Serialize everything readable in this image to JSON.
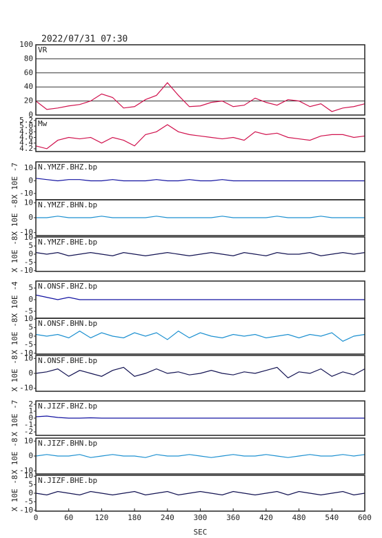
{
  "chart_data": [
    {
      "type": "line",
      "title": "2022/07/31 07:30",
      "label": "VR",
      "ylim": [
        0,
        100
      ],
      "yticks": [
        0,
        20,
        40,
        60,
        80,
        100
      ],
      "grid": true,
      "x": [
        0,
        20,
        40,
        60,
        80,
        100,
        120,
        140,
        160,
        180,
        200,
        220,
        240,
        260,
        280,
        300,
        320,
        340,
        360,
        380,
        400,
        420,
        440,
        460,
        480,
        500,
        520,
        540,
        560,
        580,
        600
      ],
      "series": [
        {
          "color": "#d0104c",
          "values": [
            20,
            8,
            10,
            13,
            15,
            20,
            30,
            25,
            10,
            12,
            22,
            28,
            46,
            28,
            12,
            13,
            18,
            20,
            12,
            14,
            24,
            18,
            14,
            22,
            20,
            12,
            16,
            5,
            10,
            12,
            16
          ]
        }
      ]
    },
    {
      "type": "line",
      "label": "Mw",
      "ylim": [
        4.1,
        5.27
      ],
      "yticks": [
        4.2,
        4.4,
        4.6,
        4.8,
        {
          "value": 5,
          "label": "5.0"
        },
        5.2
      ],
      "x": [
        0,
        20,
        40,
        60,
        80,
        100,
        120,
        140,
        160,
        180,
        200,
        220,
        240,
        260,
        280,
        300,
        320,
        340,
        360,
        380,
        400,
        420,
        440,
        460,
        480,
        500,
        520,
        540,
        560,
        580,
        600
      ],
      "series": [
        {
          "color": "#d0104c",
          "values": [
            4.3,
            4.2,
            4.5,
            4.6,
            4.55,
            4.6,
            4.4,
            4.6,
            4.5,
            4.3,
            4.7,
            4.8,
            5.05,
            4.8,
            4.7,
            4.65,
            4.6,
            4.55,
            4.6,
            4.5,
            4.8,
            4.7,
            4.75,
            4.6,
            4.55,
            4.5,
            4.65,
            4.7,
            4.7,
            4.6,
            4.65
          ]
        }
      ]
    },
    {
      "type": "line",
      "label": "N.YMZF.BHZ.bp",
      "ylabel": "X 10E -7",
      "ylim": [
        -15,
        15
      ],
      "yticks": [
        -10,
        0,
        10
      ],
      "x": [
        0,
        20,
        40,
        60,
        80,
        100,
        120,
        140,
        160,
        180,
        200,
        220,
        240,
        260,
        280,
        300,
        320,
        340,
        360,
        380,
        400,
        420,
        440,
        460,
        480,
        500,
        520,
        540,
        560,
        580,
        600
      ],
      "series": [
        {
          "color": "#1010a0",
          "values": [
            2,
            1,
            0,
            1,
            1,
            0,
            0,
            1,
            0,
            0,
            0,
            1,
            0,
            0,
            1,
            0,
            0,
            1,
            0,
            0,
            0,
            0,
            0,
            0,
            0,
            0,
            0,
            0,
            0,
            0,
            0
          ]
        }
      ]
    },
    {
      "type": "line",
      "label": "N.YMZF.BHN.bp",
      "ylabel": "X 10E -8",
      "ylim": [
        -12,
        12
      ],
      "yticks": [
        -10,
        0,
        10
      ],
      "x": [
        0,
        20,
        40,
        60,
        80,
        100,
        120,
        140,
        160,
        180,
        200,
        220,
        240,
        260,
        280,
        300,
        320,
        340,
        360,
        380,
        400,
        420,
        440,
        460,
        480,
        500,
        520,
        540,
        560,
        580,
        600
      ],
      "series": [
        {
          "color": "#1a8fd0",
          "values": [
            0,
            0,
            1,
            0,
            0,
            0,
            1,
            0,
            0,
            0,
            0,
            1,
            0,
            0,
            0,
            0,
            0,
            1,
            0,
            0,
            0,
            0,
            1,
            0,
            0,
            0,
            1,
            0,
            0,
            0,
            0
          ]
        }
      ]
    },
    {
      "type": "line",
      "label": "N.YMZF.BHE.bp",
      "ylabel": "X 10E -8",
      "ylim": [
        -10.5,
        10.5
      ],
      "yticks": [
        -10,
        -5,
        0,
        5,
        10
      ],
      "x": [
        0,
        20,
        40,
        60,
        80,
        100,
        120,
        140,
        160,
        180,
        200,
        220,
        240,
        260,
        280,
        300,
        320,
        340,
        360,
        380,
        400,
        420,
        440,
        460,
        480,
        500,
        520,
        540,
        560,
        580,
        600
      ],
      "series": [
        {
          "color": "#101050",
          "values": [
            1,
            0,
            1,
            -1,
            0,
            1,
            0,
            -1,
            1,
            0,
            -1,
            0,
            1,
            0,
            -1,
            0,
            1,
            0,
            -1,
            1,
            0,
            -1,
            1,
            0,
            0,
            1,
            -1,
            0,
            1,
            0,
            1
          ]
        }
      ]
    },
    {
      "type": "line",
      "label": "N.ONSF.BHZ.bp",
      "ylabel": "X 10E -4",
      "ylim": [
        -8,
        8
      ],
      "yticks": [
        -5,
        0,
        5
      ],
      "x": [
        0,
        20,
        40,
        60,
        80,
        100,
        120,
        140,
        160,
        180,
        200,
        220,
        240,
        260,
        280,
        300,
        320,
        340,
        360,
        380,
        400,
        420,
        440,
        460,
        480,
        500,
        520,
        540,
        560,
        580,
        600
      ],
      "series": [
        {
          "color": "#1010a0",
          "values": [
            2,
            1,
            0,
            1,
            0,
            0,
            0,
            0,
            0,
            0,
            0,
            0,
            0,
            0,
            0,
            0,
            0,
            0,
            0,
            0,
            0,
            0,
            0,
            0,
            0,
            0,
            0,
            0,
            0,
            0,
            0
          ]
        }
      ]
    },
    {
      "type": "line",
      "label": "N.ONSF.BHN.bp",
      "ylabel": "X 10E -8",
      "ylim": [
        -10.5,
        10.5
      ],
      "yticks": [
        -10,
        -5,
        0,
        5,
        10
      ],
      "x": [
        0,
        20,
        40,
        60,
        80,
        100,
        120,
        140,
        160,
        180,
        200,
        220,
        240,
        260,
        280,
        300,
        320,
        340,
        360,
        380,
        400,
        420,
        440,
        460,
        480,
        500,
        520,
        540,
        560,
        580,
        600
      ],
      "series": [
        {
          "color": "#1a8fd0",
          "values": [
            1,
            0,
            1,
            -1,
            3,
            -1,
            2,
            0,
            -1,
            2,
            0,
            2,
            -2,
            3,
            -1,
            2,
            0,
            -1,
            1,
            0,
            1,
            -1,
            0,
            1,
            -1,
            1,
            0,
            2,
            -3,
            0,
            1
          ]
        }
      ]
    },
    {
      "type": "line",
      "label": "N.ONSF.BHE.bp",
      "ylabel": "X 10E -8",
      "ylim": [
        -12,
        12
      ],
      "yticks": [
        -10,
        0,
        10
      ],
      "x": [
        0,
        20,
        40,
        60,
        80,
        100,
        120,
        140,
        160,
        180,
        200,
        220,
        240,
        260,
        280,
        300,
        320,
        340,
        360,
        380,
        400,
        420,
        440,
        460,
        480,
        500,
        520,
        540,
        560,
        580,
        600
      ],
      "series": [
        {
          "color": "#101050",
          "values": [
            0,
            1,
            3,
            -2,
            2,
            0,
            -2,
            2,
            4,
            -2,
            0,
            3,
            0,
            1,
            -1,
            0,
            2,
            0,
            -1,
            1,
            0,
            2,
            4,
            -3,
            1,
            0,
            3,
            -2,
            1,
            -1,
            3
          ]
        }
      ]
    },
    {
      "type": "line",
      "label": "N.JIZF.BHZ.bp",
      "ylabel": "X 10E -7",
      "ylim": [
        -2.5,
        2.5
      ],
      "yticks": [
        -2,
        -1,
        0,
        1,
        2
      ],
      "x": [
        0,
        20,
        40,
        60,
        80,
        100,
        120,
        140,
        160,
        180,
        200,
        220,
        240,
        260,
        280,
        300,
        320,
        340,
        360,
        380,
        400,
        420,
        440,
        460,
        480,
        500,
        520,
        540,
        560,
        580,
        600
      ],
      "series": [
        {
          "color": "#1010a0",
          "values": [
            0.2,
            0.3,
            0.1,
            0,
            0,
            0.05,
            0,
            0,
            0,
            0,
            0,
            0,
            0,
            0,
            0,
            0,
            0,
            0,
            0,
            0,
            0,
            0,
            0,
            0,
            0,
            0,
            0,
            0,
            0,
            0,
            0
          ]
        }
      ]
    },
    {
      "type": "line",
      "label": "N.JIZF.BHN.bp",
      "ylabel": "X 10E -8",
      "ylim": [
        -12,
        12
      ],
      "yticks": [
        -10,
        0,
        10
      ],
      "x": [
        0,
        20,
        40,
        60,
        80,
        100,
        120,
        140,
        160,
        180,
        200,
        220,
        240,
        260,
        280,
        300,
        320,
        340,
        360,
        380,
        400,
        420,
        440,
        460,
        480,
        500,
        520,
        540,
        560,
        580,
        600
      ],
      "series": [
        {
          "color": "#1a8fd0",
          "values": [
            0,
            1,
            0,
            0,
            1,
            -1,
            0,
            1,
            0,
            0,
            -1,
            1,
            0,
            0,
            1,
            0,
            -1,
            0,
            1,
            0,
            0,
            1,
            0,
            -1,
            0,
            1,
            0,
            0,
            1,
            0,
            1
          ]
        }
      ]
    },
    {
      "type": "line",
      "label": "N.JIZF.BHE.bp",
      "ylabel": "X 10E -8",
      "ylim": [
        -10.5,
        10.5
      ],
      "yticks": [
        -10,
        -5,
        0,
        5,
        10
      ],
      "xlabel": "SEC",
      "xlim": [
        0,
        600
      ],
      "xticks": [
        0,
        60,
        120,
        180,
        240,
        300,
        360,
        420,
        480,
        540,
        600
      ],
      "x": [
        0,
        20,
        40,
        60,
        80,
        100,
        120,
        140,
        160,
        180,
        200,
        220,
        240,
        260,
        280,
        300,
        320,
        340,
        360,
        380,
        400,
        420,
        440,
        460,
        480,
        500,
        520,
        540,
        560,
        580,
        600
      ],
      "series": [
        {
          "color": "#101050",
          "values": [
            0,
            -1,
            1,
            0,
            -1,
            1,
            0,
            -1,
            0,
            1,
            -1,
            0,
            1,
            -1,
            0,
            1,
            0,
            -1,
            1,
            0,
            -1,
            0,
            1,
            -1,
            1,
            0,
            -1,
            0,
            1,
            -1,
            0
          ]
        }
      ]
    }
  ]
}
